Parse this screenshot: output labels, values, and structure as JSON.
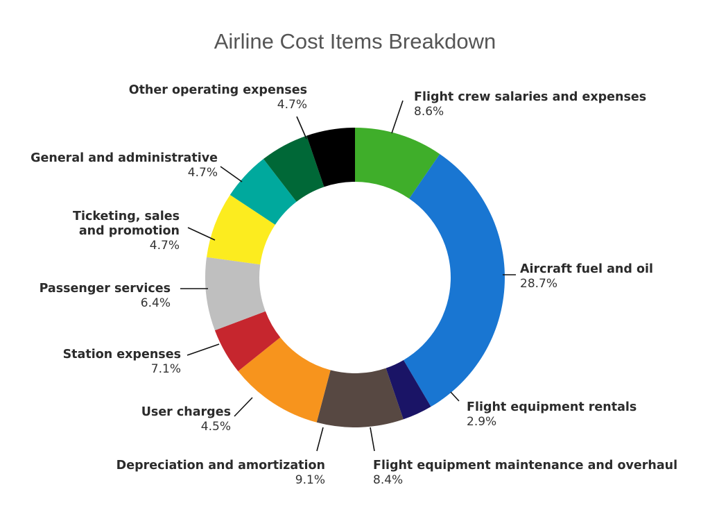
{
  "chart_data": {
    "type": "pie",
    "style": "donut",
    "title": "Airline Cost Items Breakdown",
    "unit": "%",
    "slices": [
      {
        "name": "Flight crew salaries and expenses",
        "value": 8.6,
        "label": "8.6%",
        "color": "#3fae2a"
      },
      {
        "name": "Aircraft fuel and oil",
        "value": 28.7,
        "label": "28.7%",
        "color": "#1976d2"
      },
      {
        "name": "Flight equipment rentals",
        "value": 2.9,
        "label": "2.9%",
        "color": "#1a1466"
      },
      {
        "name": "Flight equipment maintenance and overhaul",
        "value": 8.4,
        "label": "8.4%",
        "color": "#574842"
      },
      {
        "name": "Depreciation and amortization",
        "value": 9.1,
        "label": "9.1%",
        "color": "#f7941d"
      },
      {
        "name": "User charges",
        "value": 4.5,
        "label": "4.5%",
        "color": "#c6262e"
      },
      {
        "name": "Station expenses",
        "value": 7.1,
        "label": "7.1%",
        "color": "#bfbfbf"
      },
      {
        "name": "Passenger services",
        "value": 6.4,
        "label": "6.4%",
        "color": "#fcec1f"
      },
      {
        "name": "Ticketing, sales and promotion",
        "value": 4.7,
        "label": "4.7%",
        "color": "#00a99d"
      },
      {
        "name": "General and administrative",
        "value": 4.7,
        "label": "4.7%",
        "color": "#006837"
      },
      {
        "name": "Other operating expenses",
        "value": 4.7,
        "label": "4.7%",
        "color": "#000000"
      }
    ]
  }
}
